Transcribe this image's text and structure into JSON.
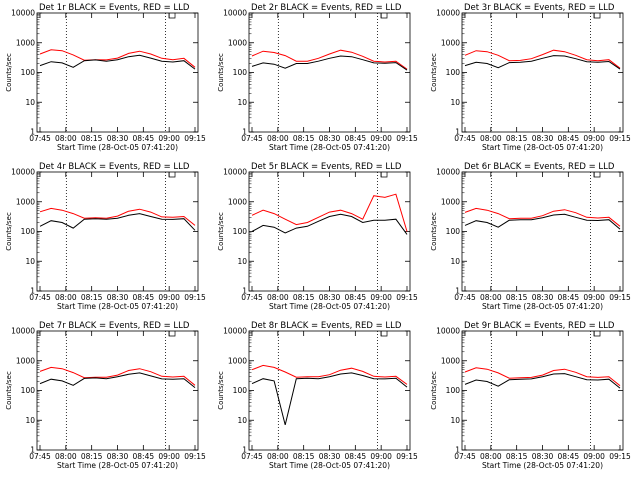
{
  "chart_data": {
    "type": "line",
    "layout": "3x3",
    "y_scale": "log",
    "ylim": [
      1,
      10000
    ],
    "y_ticks": [
      "1",
      "10",
      "100",
      "1000",
      "10000"
    ],
    "ylabel": "Counts/sec",
    "x_ticks": [
      "07:45",
      "08:00",
      "08:15",
      "08:30",
      "08:45",
      "09:00",
      "09:15"
    ],
    "xlabel": "Start Time (28-Oct-05 07:41:20)",
    "colors": {
      "events": "#000000",
      "lld": "#ff0000",
      "axis": "#000000"
    },
    "panels": [
      {
        "title": "Det 1r BLACK = Events, RED = LLD",
        "black": [
          170,
          230,
          210,
          150,
          250,
          265,
          240,
          270,
          340,
          380,
          305,
          240,
          225,
          250,
          130
        ],
        "red": [
          420,
          580,
          540,
          390,
          260,
          270,
          265,
          305,
          440,
          520,
          420,
          300,
          270,
          300,
          150
        ]
      },
      {
        "title": "Det 2r BLACK = Events, RED = LLD",
        "black": [
          160,
          210,
          190,
          140,
          200,
          200,
          240,
          300,
          360,
          340,
          270,
          210,
          205,
          215,
          120
        ],
        "red": [
          360,
          520,
          470,
          370,
          240,
          240,
          300,
          420,
          560,
          480,
          350,
          240,
          225,
          240,
          130
        ]
      },
      {
        "title": "Det 3r BLACK = Events, RED = LLD",
        "black": [
          170,
          220,
          200,
          145,
          215,
          220,
          240,
          300,
          370,
          360,
          290,
          230,
          220,
          235,
          130
        ],
        "red": [
          380,
          540,
          500,
          380,
          250,
          255,
          290,
          400,
          560,
          500,
          380,
          270,
          250,
          270,
          140
        ]
      },
      {
        "title": "Det 4r BLACK = Events, RED = LLD",
        "black": [
          150,
          230,
          200,
          130,
          260,
          270,
          260,
          280,
          350,
          400,
          320,
          260,
          255,
          270,
          110
        ],
        "red": [
          460,
          600,
          520,
          400,
          280,
          290,
          280,
          330,
          480,
          560,
          450,
          310,
          300,
          320,
          160
        ]
      },
      {
        "title": "Det 5r BLACK = Events, RED = LLD",
        "black": [
          100,
          160,
          140,
          90,
          130,
          150,
          220,
          320,
          380,
          320,
          200,
          240,
          240,
          260,
          80
        ],
        "red": [
          350,
          520,
          400,
          260,
          170,
          200,
          300,
          450,
          520,
          400,
          260,
          1600,
          1400,
          1800,
          100
        ]
      },
      {
        "title": "Det 6r BLACK = Events, RED = LLD",
        "black": [
          160,
          230,
          200,
          140,
          240,
          250,
          250,
          290,
          360,
          380,
          300,
          240,
          235,
          250,
          120
        ],
        "red": [
          440,
          600,
          520,
          400,
          270,
          280,
          280,
          340,
          480,
          540,
          430,
          300,
          285,
          300,
          150
        ]
      },
      {
        "title": "Det 7r BLACK = Events, RED = LLD",
        "black": [
          170,
          240,
          210,
          150,
          255,
          265,
          250,
          290,
          350,
          390,
          310,
          245,
          240,
          250,
          125
        ],
        "red": [
          440,
          600,
          540,
          400,
          270,
          280,
          280,
          330,
          470,
          540,
          430,
          300,
          285,
          300,
          150
        ]
      },
      {
        "title": "Det 8r BLACK = Events, RED = LLD",
        "black": [
          170,
          250,
          210,
          7,
          250,
          260,
          250,
          290,
          360,
          390,
          320,
          250,
          245,
          260,
          130
        ],
        "red": [
          500,
          700,
          600,
          420,
          280,
          290,
          290,
          340,
          480,
          560,
          440,
          300,
          285,
          300,
          160
        ]
      },
      {
        "title": "Det 9r BLACK = Events, RED = LLD",
        "black": [
          160,
          225,
          200,
          140,
          230,
          240,
          245,
          290,
          360,
          370,
          290,
          230,
          225,
          240,
          120
        ],
        "red": [
          420,
          580,
          520,
          390,
          260,
          270,
          275,
          330,
          470,
          520,
          410,
          290,
          275,
          290,
          145
        ]
      }
    ]
  }
}
